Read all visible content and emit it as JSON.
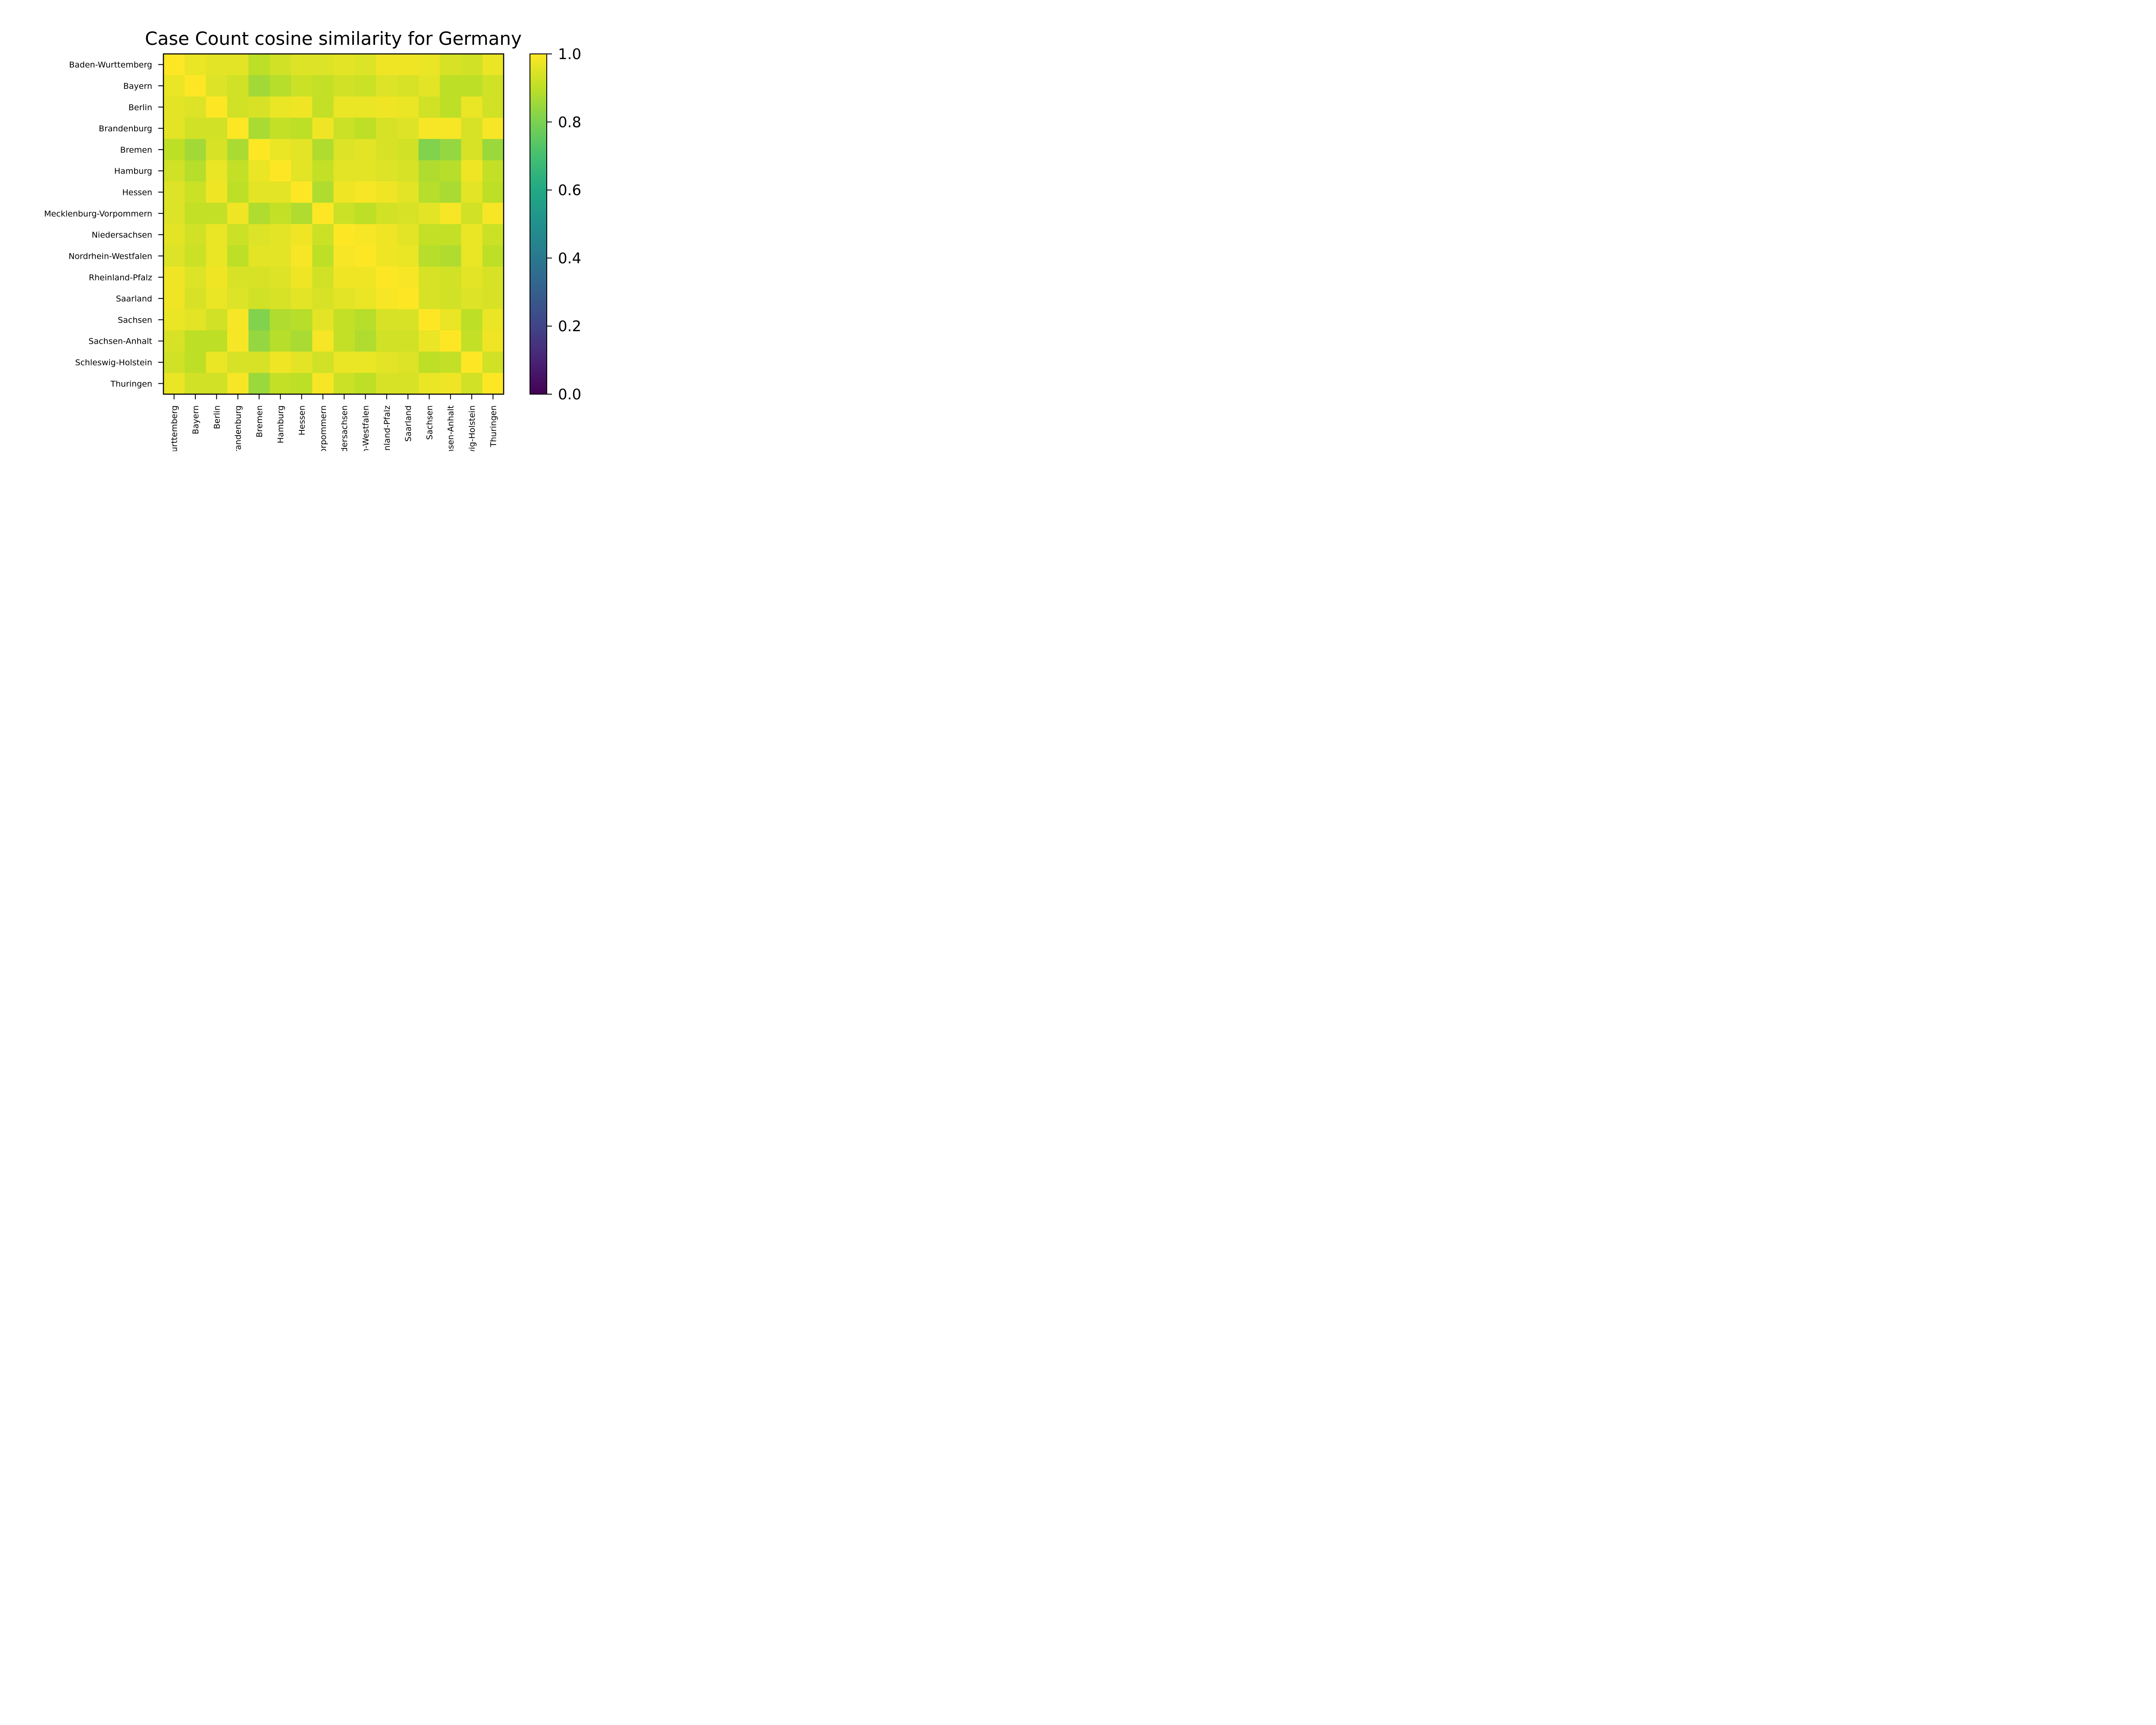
{
  "chart_data": {
    "type": "heatmap",
    "title": "Case Count cosine similarity for Germany",
    "xlabel": "",
    "ylabel": "",
    "row_labels": [
      "Baden-Wurttemberg",
      "Bayern",
      "Berlin",
      "Brandenburg",
      "Bremen",
      "Hamburg",
      "Hessen",
      "Mecklenburg-Vorpommern",
      "Niedersachsen",
      "Nordrhein-Westfalen",
      "Rheinland-Pfalz",
      "Saarland",
      "Sachsen",
      "Sachsen-Anhalt",
      "Schleswig-Holstein",
      "Thuringen"
    ],
    "col_labels": [
      "Baden-Wurttemberg",
      "Bayern",
      "Berlin",
      "Brandenburg",
      "Bremen",
      "Hamburg",
      "Hessen",
      "Mecklenburg-Vorpommern",
      "Niedersachsen",
      "Nordrhein-Westfalen",
      "Rheinland-Pfalz",
      "Saarland",
      "Sachsen",
      "Sachsen-Anhalt",
      "Schleswig-Holstein",
      "Thuringen"
    ],
    "values": [
      [
        1.0,
        0.97,
        0.96,
        0.96,
        0.9,
        0.93,
        0.95,
        0.95,
        0.96,
        0.95,
        0.98,
        0.98,
        0.97,
        0.94,
        0.93,
        0.97
      ],
      [
        0.97,
        1.0,
        0.95,
        0.93,
        0.86,
        0.89,
        0.92,
        0.91,
        0.93,
        0.92,
        0.95,
        0.94,
        0.96,
        0.9,
        0.9,
        0.93
      ],
      [
        0.96,
        0.95,
        1.0,
        0.93,
        0.94,
        0.97,
        0.98,
        0.91,
        0.97,
        0.97,
        0.98,
        0.97,
        0.93,
        0.9,
        0.97,
        0.93
      ],
      [
        0.96,
        0.93,
        0.93,
        1.0,
        0.87,
        0.91,
        0.9,
        0.98,
        0.92,
        0.9,
        0.94,
        0.95,
        0.99,
        0.99,
        0.94,
        0.99
      ],
      [
        0.9,
        0.86,
        0.94,
        0.87,
        1.0,
        0.97,
        0.96,
        0.88,
        0.95,
        0.96,
        0.94,
        0.93,
        0.81,
        0.84,
        0.94,
        0.85
      ],
      [
        0.93,
        0.89,
        0.97,
        0.91,
        0.97,
        1.0,
        0.96,
        0.91,
        0.96,
        0.96,
        0.95,
        0.94,
        0.88,
        0.89,
        0.98,
        0.91
      ],
      [
        0.95,
        0.92,
        0.98,
        0.9,
        0.96,
        0.96,
        1.0,
        0.88,
        0.98,
        0.99,
        0.98,
        0.96,
        0.89,
        0.87,
        0.96,
        0.9
      ],
      [
        0.95,
        0.91,
        0.91,
        0.98,
        0.88,
        0.91,
        0.88,
        1.0,
        0.92,
        0.9,
        0.93,
        0.94,
        0.96,
        0.99,
        0.93,
        0.99
      ],
      [
        0.96,
        0.93,
        0.97,
        0.92,
        0.95,
        0.96,
        0.98,
        0.92,
        1.0,
        0.99,
        0.98,
        0.96,
        0.91,
        0.91,
        0.97,
        0.92
      ],
      [
        0.95,
        0.92,
        0.97,
        0.9,
        0.96,
        0.96,
        0.99,
        0.9,
        0.99,
        1.0,
        0.98,
        0.97,
        0.89,
        0.88,
        0.97,
        0.9
      ],
      [
        0.98,
        0.95,
        0.98,
        0.94,
        0.94,
        0.95,
        0.98,
        0.93,
        0.98,
        0.98,
        1.0,
        0.99,
        0.94,
        0.93,
        0.96,
        0.94
      ],
      [
        0.98,
        0.94,
        0.97,
        0.95,
        0.93,
        0.94,
        0.96,
        0.94,
        0.96,
        0.97,
        0.99,
        1.0,
        0.94,
        0.93,
        0.95,
        0.94
      ],
      [
        0.97,
        0.96,
        0.93,
        0.99,
        0.81,
        0.88,
        0.89,
        0.96,
        0.91,
        0.89,
        0.94,
        0.94,
        1.0,
        0.97,
        0.9,
        0.97
      ],
      [
        0.94,
        0.9,
        0.9,
        0.99,
        0.84,
        0.89,
        0.87,
        0.99,
        0.91,
        0.88,
        0.93,
        0.93,
        0.97,
        1.0,
        0.91,
        0.98
      ],
      [
        0.93,
        0.9,
        0.97,
        0.94,
        0.94,
        0.98,
        0.96,
        0.93,
        0.97,
        0.97,
        0.96,
        0.95,
        0.9,
        0.91,
        1.0,
        0.93
      ],
      [
        0.97,
        0.93,
        0.93,
        0.99,
        0.85,
        0.91,
        0.9,
        0.99,
        0.92,
        0.9,
        0.94,
        0.94,
        0.97,
        0.98,
        0.93,
        1.0
      ]
    ],
    "colorbar": {
      "colormap": "viridis",
      "range": [
        0.0,
        1.0
      ],
      "ticks": [
        "0.0",
        "0.2",
        "0.4",
        "0.6",
        "0.8",
        "1.0"
      ]
    }
  }
}
